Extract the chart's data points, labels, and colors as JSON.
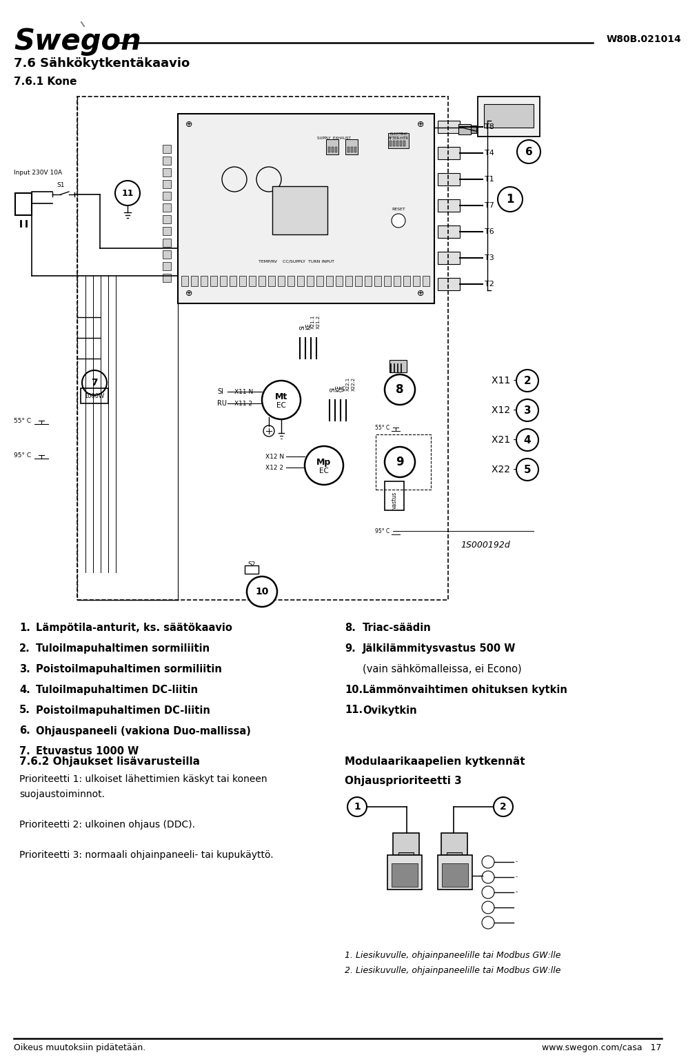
{
  "page_width": 9.6,
  "page_height": 15.23,
  "bg_color": "#ffffff",
  "logo_text": "Swegon",
  "doc_number": "W80B.021014",
  "section_title": "7.6 Sähkökytkentäkaavio",
  "section_subtitle": "7.6.1 Kone",
  "footer_left": "Oikeus muutoksiin pidätetään.",
  "footer_right": "www.swegon.com/casa   17",
  "ref_code": "1S000192d",
  "numbered_items_left": [
    [
      "1.",
      "Lämpötila-anturit, ks. säätökaavio"
    ],
    [
      "2.",
      "Tuloilmapuhaltimen sormiliitin"
    ],
    [
      "3.",
      "Poistoilmapuhaltimen sormiliitin"
    ],
    [
      "4.",
      "Tuloilmapuhaltimen DC-liitin"
    ],
    [
      "5.",
      "Poistoilmapuhaltimen DC-liitin"
    ],
    [
      "6.",
      "Ohjauspaneeli (vakiona Duo-mallissa)"
    ],
    [
      "7.",
      "Etuvastus 1000 W"
    ]
  ],
  "numbered_items_right": [
    [
      "8.",
      "Triac-säädin",
      ""
    ],
    [
      "9.",
      "Jälkilämmitysvastus 500 W",
      "(vain sähkömalleissa, ei Econo)"
    ],
    [
      "10.",
      "Lämmönvaihtimen ohituksen kytkin",
      ""
    ],
    [
      "11.",
      "Ovikytkin",
      ""
    ]
  ],
  "section2_title": "7.6.2 Ohjaukset lisävarusteilla",
  "section2_lines": [
    "Prioriteetti 1: ulkoiset lähettimien käskyt tai koneen",
    "suojaustoiminnot.",
    "",
    "Prioriteetti 2: ulkoinen ohjaus (DDC).",
    "",
    "Prioriteetti 3: normaali ohjainpaneeli- tai kupukäyttö."
  ],
  "section3_title": "Modulaarikaapelien kytkennät",
  "section3_subtitle": "Ohjausprioriteetti 3",
  "caption1": "1. Liesikuvulle, ohjainpaneelille tai Modbus GW:lle",
  "caption2": "2. Liesikuvulle, ohjainpaneelille tai Modbus GW:lle"
}
